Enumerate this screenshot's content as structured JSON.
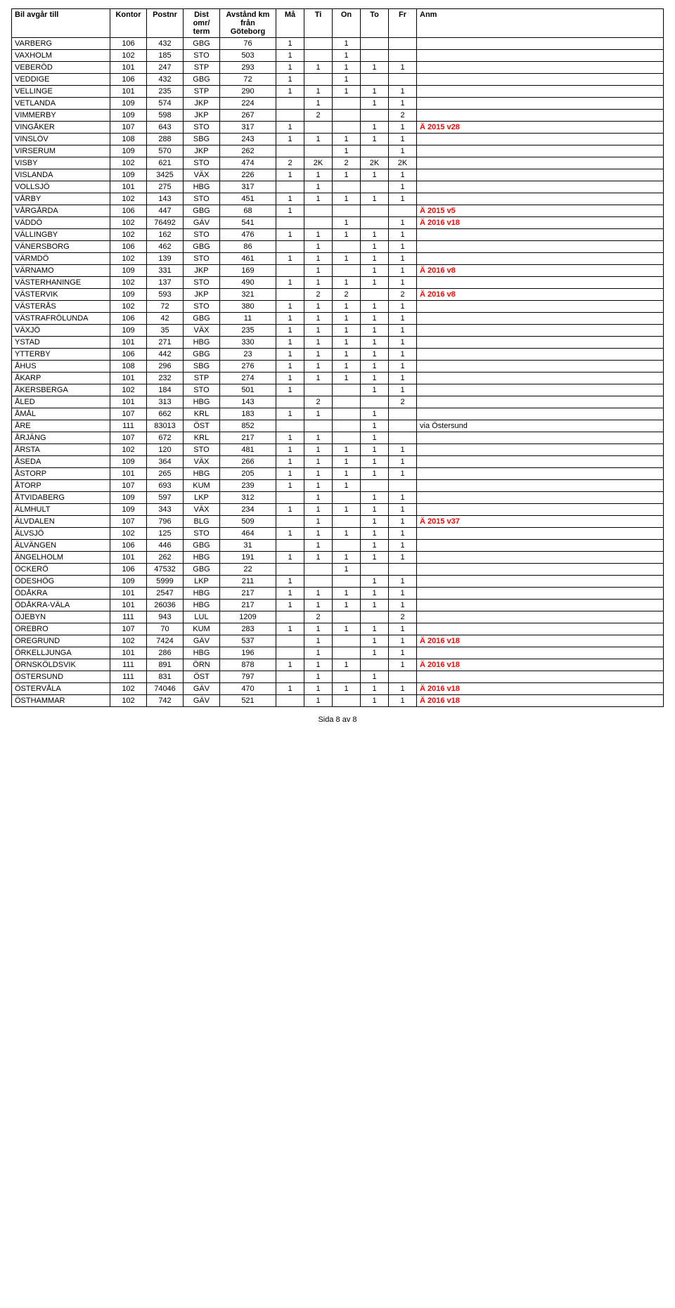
{
  "header": {
    "columns": [
      "Bil avgår till",
      "Kontor",
      "Postnr",
      "Dist omr/ term",
      "Avstånd km från Göteborg",
      "Må",
      "Ti",
      "On",
      "To",
      "Fr",
      "Anm"
    ]
  },
  "footer": "Sida 8 av 8",
  "rows": [
    {
      "name": "VARBERG",
      "kontor": "106",
      "postnr": "432",
      "dist": "GBG",
      "avst": "76",
      "ma": "1",
      "ti": "",
      "on": "1",
      "to": "",
      "fr": "",
      "anm": ""
    },
    {
      "name": "VAXHOLM",
      "kontor": "102",
      "postnr": "185",
      "dist": "STO",
      "avst": "503",
      "ma": "1",
      "ti": "",
      "on": "1",
      "to": "",
      "fr": "",
      "anm": ""
    },
    {
      "name": "VEBERÖD",
      "kontor": "101",
      "postnr": "247",
      "dist": "STP",
      "avst": "293",
      "ma": "1",
      "ti": "1",
      "on": "1",
      "to": "1",
      "fr": "1",
      "anm": ""
    },
    {
      "name": "VEDDIGE",
      "kontor": "106",
      "postnr": "432",
      "dist": "GBG",
      "avst": "72",
      "ma": "1",
      "ti": "",
      "on": "1",
      "to": "",
      "fr": "",
      "anm": ""
    },
    {
      "name": "VELLINGE",
      "kontor": "101",
      "postnr": "235",
      "dist": "STP",
      "avst": "290",
      "ma": "1",
      "ti": "1",
      "on": "1",
      "to": "1",
      "fr": "1",
      "anm": ""
    },
    {
      "name": "VETLANDA",
      "kontor": "109",
      "postnr": "574",
      "dist": "JKP",
      "avst": "224",
      "ma": "",
      "ti": "1",
      "on": "",
      "to": "1",
      "fr": "1",
      "anm": ""
    },
    {
      "name": "VIMMERBY",
      "kontor": "109",
      "postnr": "598",
      "dist": "JKP",
      "avst": "267",
      "ma": "",
      "ti": "2",
      "on": "",
      "to": "",
      "fr": "2",
      "anm": ""
    },
    {
      "name": "VINGÅKER",
      "kontor": "107",
      "postnr": "643",
      "dist": "STO",
      "avst": "317",
      "ma": "1",
      "ti": "",
      "on": "",
      "to": "1",
      "fr": "1",
      "anm": "Ä 2015 v28",
      "anmRed": true
    },
    {
      "name": "VINSLÖV",
      "kontor": "108",
      "postnr": "288",
      "dist": "SBG",
      "avst": "243",
      "ma": "1",
      "ti": "1",
      "on": "1",
      "to": "1",
      "fr": "1",
      "anm": ""
    },
    {
      "name": "VIRSERUM",
      "kontor": "109",
      "postnr": "570",
      "dist": "JKP",
      "avst": "262",
      "ma": "",
      "ti": "",
      "on": "1",
      "to": "",
      "fr": "1",
      "anm": ""
    },
    {
      "name": "VISBY",
      "kontor": "102",
      "postnr": "621",
      "dist": "STO",
      "avst": "474",
      "ma": "2",
      "ti": "2K",
      "on": "2",
      "to": "2K",
      "fr": "2K",
      "anm": ""
    },
    {
      "name": "VISLANDA",
      "kontor": "109",
      "postnr": "3425",
      "dist": "VÄX",
      "avst": "226",
      "ma": "1",
      "ti": "1",
      "on": "1",
      "to": "1",
      "fr": "1",
      "anm": ""
    },
    {
      "name": "VOLLSJÖ",
      "kontor": "101",
      "postnr": "275",
      "dist": "HBG",
      "avst": "317",
      "ma": "",
      "ti": "1",
      "on": "",
      "to": "",
      "fr": "1",
      "anm": ""
    },
    {
      "name": "VÅRBY",
      "kontor": "102",
      "postnr": "143",
      "dist": "STO",
      "avst": "451",
      "ma": "1",
      "ti": "1",
      "on": "1",
      "to": "1",
      "fr": "1",
      "anm": ""
    },
    {
      "name": "VÅRGÅRDA",
      "kontor": "106",
      "postnr": "447",
      "dist": "GBG",
      "avst": "68",
      "ma": "1",
      "ti": "",
      "on": "",
      "to": "",
      "fr": "",
      "anm": "Ä 2015 v5",
      "anmRed": true
    },
    {
      "name": "VÄDDÖ",
      "kontor": "102",
      "postnr": "76492",
      "dist": "GÄV",
      "avst": "541",
      "ma": "",
      "ti": "",
      "on": "1",
      "to": "",
      "fr": "1",
      "anm": "Ä 2016 v18",
      "anmRed": true
    },
    {
      "name": "VÄLLINGBY",
      "kontor": "102",
      "postnr": "162",
      "dist": "STO",
      "avst": "476",
      "ma": "1",
      "ti": "1",
      "on": "1",
      "to": "1",
      "fr": "1",
      "anm": ""
    },
    {
      "name": "VÄNERSBORG",
      "kontor": "106",
      "postnr": "462",
      "dist": "GBG",
      "avst": "86",
      "ma": "",
      "ti": "1",
      "on": "",
      "to": "1",
      "fr": "1",
      "anm": ""
    },
    {
      "name": "VÄRMDÖ",
      "kontor": "102",
      "postnr": "139",
      "dist": "STO",
      "avst": "461",
      "ma": "1",
      "ti": "1",
      "on": "1",
      "to": "1",
      "fr": "1",
      "anm": ""
    },
    {
      "name": "VÄRNAMO",
      "kontor": "109",
      "postnr": "331",
      "dist": "JKP",
      "avst": "169",
      "ma": "",
      "ti": "1",
      "on": "",
      "to": "1",
      "fr": "1",
      "anm": "Ä 2016 v8",
      "anmRed": true
    },
    {
      "name": "VÄSTERHANINGE",
      "kontor": "102",
      "postnr": "137",
      "dist": "STO",
      "avst": "490",
      "ma": "1",
      "ti": "1",
      "on": "1",
      "to": "1",
      "fr": "1",
      "anm": ""
    },
    {
      "name": "VÄSTERVIK",
      "kontor": "109",
      "postnr": "593",
      "dist": "JKP",
      "avst": "321",
      "ma": "",
      "ti": "2",
      "on": "2",
      "to": "",
      "fr": "2",
      "anm": "Ä 2016 v8",
      "anmRed": true
    },
    {
      "name": "VÄSTERÅS",
      "kontor": "102",
      "postnr": "72",
      "dist": "STO",
      "avst": "380",
      "ma": "1",
      "ti": "1",
      "on": "1",
      "to": "1",
      "fr": "1",
      "anm": ""
    },
    {
      "name": "VÄSTRAFRÖLUNDA",
      "kontor": "106",
      "postnr": "42",
      "dist": "GBG",
      "avst": "11",
      "ma": "1",
      "ti": "1",
      "on": "1",
      "to": "1",
      "fr": "1",
      "anm": ""
    },
    {
      "name": "VÄXJÖ",
      "kontor": "109",
      "postnr": "35",
      "dist": "VÄX",
      "avst": "235",
      "ma": "1",
      "ti": "1",
      "on": "1",
      "to": "1",
      "fr": "1",
      "anm": ""
    },
    {
      "name": "YSTAD",
      "kontor": "101",
      "postnr": "271",
      "dist": "HBG",
      "avst": "330",
      "ma": "1",
      "ti": "1",
      "on": "1",
      "to": "1",
      "fr": "1",
      "anm": ""
    },
    {
      "name": "YTTERBY",
      "kontor": "106",
      "postnr": "442",
      "dist": "GBG",
      "avst": "23",
      "ma": "1",
      "ti": "1",
      "on": "1",
      "to": "1",
      "fr": "1",
      "anm": ""
    },
    {
      "name": "ÅHUS",
      "kontor": "108",
      "postnr": "296",
      "dist": "SBG",
      "avst": "276",
      "ma": "1",
      "ti": "1",
      "on": "1",
      "to": "1",
      "fr": "1",
      "anm": ""
    },
    {
      "name": "ÅKARP",
      "kontor": "101",
      "postnr": "232",
      "dist": "STP",
      "avst": "274",
      "ma": "1",
      "ti": "1",
      "on": "1",
      "to": "1",
      "fr": "1",
      "anm": ""
    },
    {
      "name": "ÅKERSBERGA",
      "kontor": "102",
      "postnr": "184",
      "dist": "STO",
      "avst": "501",
      "ma": "1",
      "ti": "",
      "on": "",
      "to": "1",
      "fr": "1",
      "anm": ""
    },
    {
      "name": "ÅLED",
      "kontor": "101",
      "postnr": "313",
      "dist": "HBG",
      "avst": "143",
      "ma": "",
      "ti": "2",
      "on": "",
      "to": "",
      "fr": "2",
      "anm": ""
    },
    {
      "name": "ÅMÅL",
      "kontor": "107",
      "postnr": "662",
      "dist": "KRL",
      "avst": "183",
      "ma": "1",
      "ti": "1",
      "on": "",
      "to": "1",
      "fr": "",
      "anm": ""
    },
    {
      "name": "ÅRE",
      "kontor": "111",
      "postnr": "83013",
      "dist": "ÖST",
      "avst": "852",
      "ma": "",
      "ti": "",
      "on": "",
      "to": "1",
      "fr": "",
      "anm": "via Östersund"
    },
    {
      "name": "ÅRJÄNG",
      "kontor": "107",
      "postnr": "672",
      "dist": "KRL",
      "avst": "217",
      "ma": "1",
      "ti": "1",
      "on": "",
      "to": "1",
      "fr": "",
      "anm": ""
    },
    {
      "name": "ÅRSTA",
      "kontor": "102",
      "postnr": "120",
      "dist": "STO",
      "avst": "481",
      "ma": "1",
      "ti": "1",
      "on": "1",
      "to": "1",
      "fr": "1",
      "anm": ""
    },
    {
      "name": "ÅSEDA",
      "kontor": "109",
      "postnr": "364",
      "dist": "VÄX",
      "avst": "266",
      "ma": "1",
      "ti": "1",
      "on": "1",
      "to": "1",
      "fr": "1",
      "anm": ""
    },
    {
      "name": "ÅSTORP",
      "kontor": "101",
      "postnr": "265",
      "dist": "HBG",
      "avst": "205",
      "ma": "1",
      "ti": "1",
      "on": "1",
      "to": "1",
      "fr": "1",
      "anm": ""
    },
    {
      "name": "ÅTORP",
      "kontor": "107",
      "postnr": "693",
      "dist": "KUM",
      "avst": "239",
      "ma": "1",
      "ti": "1",
      "on": "1",
      "to": "",
      "fr": "",
      "anm": ""
    },
    {
      "name": "ÅTVIDABERG",
      "kontor": "109",
      "postnr": "597",
      "dist": "LKP",
      "avst": "312",
      "ma": "",
      "ti": "1",
      "on": "",
      "to": "1",
      "fr": "1",
      "anm": ""
    },
    {
      "name": "ÄLMHULT",
      "kontor": "109",
      "postnr": "343",
      "dist": "VÄX",
      "avst": "234",
      "ma": "1",
      "ti": "1",
      "on": "1",
      "to": "1",
      "fr": "1",
      "anm": ""
    },
    {
      "name": "ÄLVDALEN",
      "kontor": "107",
      "postnr": "796",
      "dist": "BLG",
      "avst": "509",
      "ma": "",
      "ti": "1",
      "on": "",
      "to": "1",
      "fr": "1",
      "anm": "Ä 2015 v37",
      "anmRed": true
    },
    {
      "name": "ÄLVSJÖ",
      "kontor": "102",
      "postnr": "125",
      "dist": "STO",
      "avst": "464",
      "ma": "1",
      "ti": "1",
      "on": "1",
      "to": "1",
      "fr": "1",
      "anm": ""
    },
    {
      "name": "ÄLVÄNGEN",
      "kontor": "106",
      "postnr": "446",
      "dist": "GBG",
      "avst": "31",
      "ma": "",
      "ti": "1",
      "on": "",
      "to": "1",
      "fr": "1",
      "anm": ""
    },
    {
      "name": "ÄNGELHOLM",
      "kontor": "101",
      "postnr": "262",
      "dist": "HBG",
      "avst": "191",
      "ma": "1",
      "ti": "1",
      "on": "1",
      "to": "1",
      "fr": "1",
      "anm": ""
    },
    {
      "name": "ÖCKERÖ",
      "kontor": "106",
      "postnr": "47532",
      "dist": "GBG",
      "avst": "22",
      "ma": "",
      "ti": "",
      "on": "1",
      "to": "",
      "fr": "",
      "anm": ""
    },
    {
      "name": "ÖDESHÖG",
      "kontor": "109",
      "postnr": "5999",
      "dist": "LKP",
      "avst": "211",
      "ma": "1",
      "ti": "",
      "on": "",
      "to": "1",
      "fr": "1",
      "anm": ""
    },
    {
      "name": "ÖDÅKRA",
      "kontor": "101",
      "postnr": "2547",
      "dist": "HBG",
      "avst": "217",
      "ma": "1",
      "ti": "1",
      "on": "1",
      "to": "1",
      "fr": "1",
      "anm": ""
    },
    {
      "name": "ÖDÅKRA-VÄLA",
      "kontor": "101",
      "postnr": "26036",
      "dist": "HBG",
      "avst": "217",
      "ma": "1",
      "ti": "1",
      "on": "1",
      "to": "1",
      "fr": "1",
      "anm": ""
    },
    {
      "name": "ÖJEBYN",
      "kontor": "111",
      "postnr": "943",
      "dist": "LUL",
      "avst": "1209",
      "ma": "",
      "ti": "2",
      "on": "",
      "to": "",
      "fr": "2",
      "anm": ""
    },
    {
      "name": "ÖREBRO",
      "kontor": "107",
      "postnr": "70",
      "dist": "KUM",
      "avst": "283",
      "ma": "1",
      "ti": "1",
      "on": "1",
      "to": "1",
      "fr": "1",
      "anm": ""
    },
    {
      "name": "ÖREGRUND",
      "kontor": "102",
      "postnr": "7424",
      "dist": "GÄV",
      "avst": "537",
      "ma": "",
      "ti": "1",
      "on": "",
      "to": "1",
      "fr": "1",
      "anm": "Ä 2016 v18",
      "anmRed": true
    },
    {
      "name": "ÖRKELLJUNGA",
      "kontor": "101",
      "postnr": "286",
      "dist": "HBG",
      "avst": "196",
      "ma": "",
      "ti": "1",
      "on": "",
      "to": "1",
      "fr": "1",
      "anm": ""
    },
    {
      "name": "ÖRNSKÖLDSVIK",
      "kontor": "111",
      "postnr": "891",
      "dist": "ÖRN",
      "avst": "878",
      "ma": "1",
      "ti": "1",
      "on": "1",
      "to": "",
      "fr": "1",
      "anm": "Ä 2016 v18",
      "anmRed": true
    },
    {
      "name": "ÖSTERSUND",
      "kontor": "111",
      "postnr": "831",
      "dist": "ÖST",
      "avst": "797",
      "ma": "",
      "ti": "1",
      "on": "",
      "to": "1",
      "fr": "",
      "anm": ""
    },
    {
      "name": "ÖSTERVÅLA",
      "kontor": "102",
      "postnr": "74046",
      "dist": "GÄV",
      "avst": "470",
      "ma": "1",
      "ti": "1",
      "on": "1",
      "to": "1",
      "fr": "1",
      "anm": "Ä 2016 v18",
      "anmRed": true
    },
    {
      "name": "ÖSTHAMMAR",
      "kontor": "102",
      "postnr": "742",
      "dist": "GÄV",
      "avst": "521",
      "ma": "",
      "ti": "1",
      "on": "",
      "to": "1",
      "fr": "1",
      "anm": "Ä 2016 v18",
      "anmRed": true
    }
  ]
}
